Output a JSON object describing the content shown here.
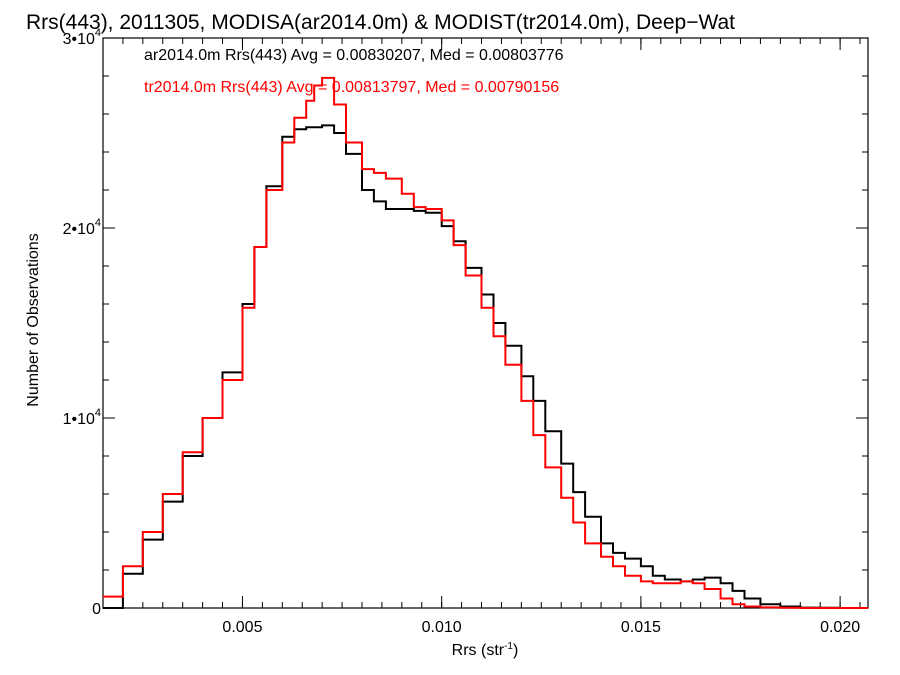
{
  "chart_data": {
    "type": "line",
    "title": "Rrs(443), 2011305, MODISA(ar2014.0m) & MODIST(tr2014.0m), Deep−Wat",
    "xlabel": "Rrs (str",
    "xlabel_sup": "-1",
    "xlabel_tail": ")",
    "ylabel": "Number of Observations",
    "xlim": [
      0.0015,
      0.0207
    ],
    "ylim": [
      0,
      30000
    ],
    "x_ticks": [
      0.005,
      0.01,
      0.015,
      0.02
    ],
    "x_tick_labels": [
      "0.005",
      "0.010",
      "0.015",
      "0.020"
    ],
    "y_ticks": [
      {
        "value": 0,
        "mantissa": "0",
        "exp": ""
      },
      {
        "value": 10000,
        "mantissa": "1•10",
        "exp": "4"
      },
      {
        "value": 20000,
        "mantissa": "2•10",
        "exp": "4"
      },
      {
        "value": 30000,
        "mantissa": "3•10",
        "exp": "4"
      }
    ],
    "grid": false,
    "legend_position": "top-left",
    "series": [
      {
        "name": "ar2014.0m Rrs(443) Avg = 0.00830207, Med = 0.00803776",
        "color": "#000000",
        "x": [
          0.0015,
          0.002,
          0.0025,
          0.003,
          0.0035,
          0.004,
          0.0045,
          0.005,
          0.0053,
          0.0056,
          0.006,
          0.0063,
          0.0066,
          0.007,
          0.0073,
          0.0076,
          0.008,
          0.0083,
          0.0086,
          0.009,
          0.0093,
          0.0096,
          0.01,
          0.0103,
          0.0106,
          0.011,
          0.0113,
          0.0116,
          0.012,
          0.0123,
          0.0126,
          0.013,
          0.0133,
          0.0136,
          0.014,
          0.0143,
          0.0146,
          0.015,
          0.0153,
          0.0156,
          0.016,
          0.0163,
          0.0166,
          0.017,
          0.0173,
          0.0176,
          0.018,
          0.0185,
          0.019,
          0.0195,
          0.02,
          0.0207
        ],
        "y": [
          0,
          1800,
          3600,
          5600,
          8000,
          10000,
          12400,
          16000,
          19000,
          22200,
          24800,
          25200,
          25300,
          25400,
          25000,
          23900,
          22000,
          21400,
          21000,
          21000,
          20900,
          20800,
          20100,
          19300,
          17900,
          16500,
          15000,
          13800,
          12200,
          10900,
          9300,
          7600,
          6100,
          4800,
          3400,
          2900,
          2600,
          2200,
          1700,
          1500,
          1400,
          1500,
          1600,
          1300,
          900,
          500,
          200,
          80,
          20,
          10,
          0,
          0
        ]
      },
      {
        "name": "tr2014.0m Rrs(443) Avg = 0.00813797, Med = 0.00790156",
        "color": "#ff0000",
        "x": [
          0.0015,
          0.002,
          0.0025,
          0.003,
          0.0035,
          0.004,
          0.0045,
          0.005,
          0.0053,
          0.0056,
          0.006,
          0.0063,
          0.0066,
          0.0068,
          0.007,
          0.0073,
          0.0076,
          0.008,
          0.0083,
          0.0086,
          0.009,
          0.0093,
          0.0096,
          0.01,
          0.0103,
          0.0106,
          0.011,
          0.0113,
          0.0116,
          0.012,
          0.0123,
          0.0126,
          0.013,
          0.0133,
          0.0136,
          0.014,
          0.0143,
          0.0146,
          0.015,
          0.0153,
          0.0156,
          0.016,
          0.0163,
          0.0166,
          0.017,
          0.0173,
          0.0176,
          0.018,
          0.0185,
          0.019,
          0.0195,
          0.02,
          0.0207
        ],
        "y": [
          600,
          2200,
          4000,
          6000,
          8200,
          10000,
          12000,
          15800,
          19000,
          22000,
          24500,
          25800,
          26700,
          27500,
          27900,
          26500,
          24500,
          23100,
          22900,
          22600,
          21800,
          21100,
          21000,
          20400,
          19100,
          17500,
          15800,
          14300,
          12800,
          10900,
          9100,
          7400,
          5800,
          4500,
          3400,
          2700,
          2200,
          1700,
          1400,
          1300,
          1300,
          1400,
          1300,
          1000,
          500,
          200,
          80,
          30,
          10,
          0,
          0,
          0,
          0
        ]
      }
    ]
  }
}
